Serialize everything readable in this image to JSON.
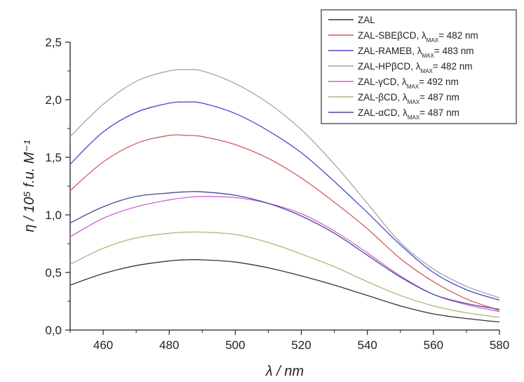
{
  "chart_data": {
    "type": "line",
    "xlabel": "λ / nm",
    "ylabel": "η / 10⁵ f.u. M⁻¹",
    "xlim": [
      450,
      580
    ],
    "ylim": [
      0.0,
      2.5
    ],
    "x_ticks": [
      "460",
      "480",
      "500",
      "520",
      "540",
      "560",
      "580"
    ],
    "y_ticks": [
      "0,0",
      "0,5",
      "1,0",
      "1,5",
      "2,0",
      "2,5"
    ],
    "legend_placement": "top-right",
    "x": [
      450,
      460,
      470,
      480,
      485,
      490,
      500,
      510,
      520,
      530,
      540,
      550,
      560,
      570,
      580
    ],
    "series": [
      {
        "name": "ZAL",
        "legend_name": "ZAL",
        "legend_sub": "",
        "legend_rest": "",
        "color": "#333333",
        "values": [
          0.39,
          0.49,
          0.56,
          0.6,
          0.61,
          0.61,
          0.59,
          0.54,
          0.47,
          0.39,
          0.3,
          0.21,
          0.14,
          0.1,
          0.07
        ]
      },
      {
        "name": "ZAL-SBEβCD, λMAX= 482 nm",
        "legend_name": "ZAL-SBEβCD, λ",
        "legend_sub": "MAX",
        "legend_rest": "= 482 nm",
        "color": "#d05a5a",
        "values": [
          1.21,
          1.46,
          1.62,
          1.69,
          1.69,
          1.68,
          1.61,
          1.49,
          1.32,
          1.11,
          0.88,
          0.62,
          0.42,
          0.27,
          0.17
        ]
      },
      {
        "name": "ZAL-RAMEB, λMAX= 483 nm",
        "legend_name": "ZAL-RAMEB, λ",
        "legend_sub": "MAX",
        "legend_rest": "= 483 nm",
        "color": "#4848c8",
        "values": [
          1.44,
          1.72,
          1.89,
          1.97,
          1.98,
          1.97,
          1.88,
          1.73,
          1.54,
          1.29,
          1.02,
          0.74,
          0.5,
          0.35,
          0.26
        ]
      },
      {
        "name": "ZAL-HPβCD, λMAX= 482 nm",
        "legend_name": "ZAL-HPβCD, λ",
        "legend_sub": "MAX",
        "legend_rest": "= 482 nm",
        "color": "#9aa8b4",
        "values": [
          1.68,
          1.96,
          2.16,
          2.25,
          2.26,
          2.25,
          2.14,
          1.97,
          1.74,
          1.44,
          1.1,
          0.76,
          0.53,
          0.38,
          0.28
        ]
      },
      {
        "name": "ZAL-γCD, λMAX= 492 nm",
        "legend_name": "ZAL-γCD, λ",
        "legend_sub": "MAX",
        "legend_rest": "= 492 nm",
        "color": "#d060d8",
        "values": [
          0.81,
          0.97,
          1.07,
          1.13,
          1.15,
          1.16,
          1.15,
          1.1,
          1.01,
          0.86,
          0.67,
          0.47,
          0.31,
          0.22,
          0.16
        ]
      },
      {
        "name": "ZAL-βCD, λMAX= 487 nm",
        "legend_name": "ZAL-βCD, λ",
        "legend_sub": "MAX",
        "legend_rest": "= 487 nm",
        "color": "#b2b27a",
        "values": [
          0.57,
          0.71,
          0.8,
          0.84,
          0.85,
          0.85,
          0.83,
          0.76,
          0.66,
          0.55,
          0.42,
          0.3,
          0.21,
          0.15,
          0.11
        ]
      },
      {
        "name": "ZAL-αCD, λMAX= 487 nm",
        "legend_name": "ZAL-αCD, λ",
        "legend_sub": "MAX",
        "legend_rest": "= 487 nm",
        "color": "#484898",
        "values": [
          0.93,
          1.07,
          1.16,
          1.19,
          1.2,
          1.2,
          1.17,
          1.1,
          0.99,
          0.84,
          0.65,
          0.46,
          0.31,
          0.23,
          0.18
        ]
      }
    ]
  }
}
